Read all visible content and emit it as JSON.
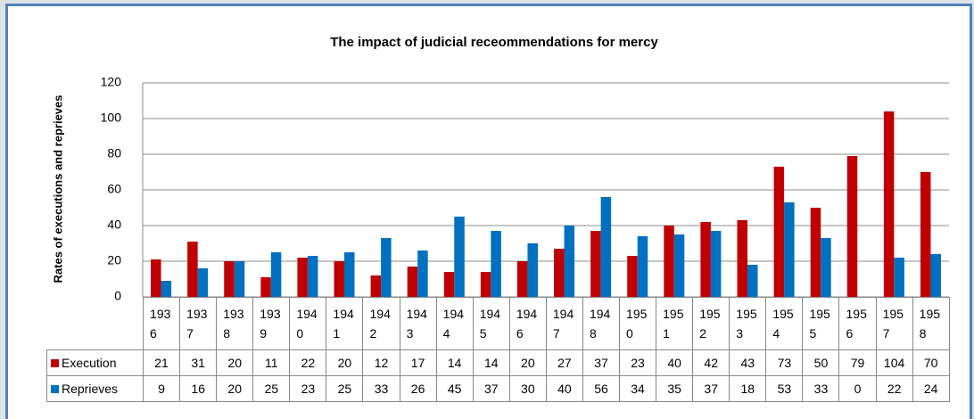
{
  "chart_data": {
    "type": "bar",
    "title": "The impact of judicial receommendations for mercy",
    "y_label": "Rates of executions and reprieves",
    "categories": [
      "1936",
      "1937",
      "1938",
      "1939",
      "1940",
      "1941",
      "1942",
      "1943",
      "1944",
      "1945",
      "1946",
      "1947",
      "1948",
      "1950",
      "1951",
      "1952",
      "1953",
      "1954",
      "1955",
      "1956",
      "1957",
      "1958"
    ],
    "series": [
      {
        "name": "Execution",
        "color": "#c00000",
        "values": [
          21,
          31,
          20,
          11,
          22,
          20,
          12,
          17,
          14,
          14,
          20,
          27,
          37,
          23,
          40,
          42,
          43,
          73,
          50,
          79,
          104,
          70
        ]
      },
      {
        "name": "Reprieves",
        "color": "#0070c0",
        "values": [
          9,
          16,
          20,
          25,
          23,
          25,
          33,
          26,
          45,
          37,
          30,
          40,
          56,
          34,
          35,
          37,
          18,
          53,
          33,
          0,
          22,
          24
        ]
      }
    ],
    "ylim": [
      0,
      120
    ],
    "yticks": [
      0,
      20,
      40,
      60,
      80,
      100,
      120
    ],
    "grid": true
  }
}
